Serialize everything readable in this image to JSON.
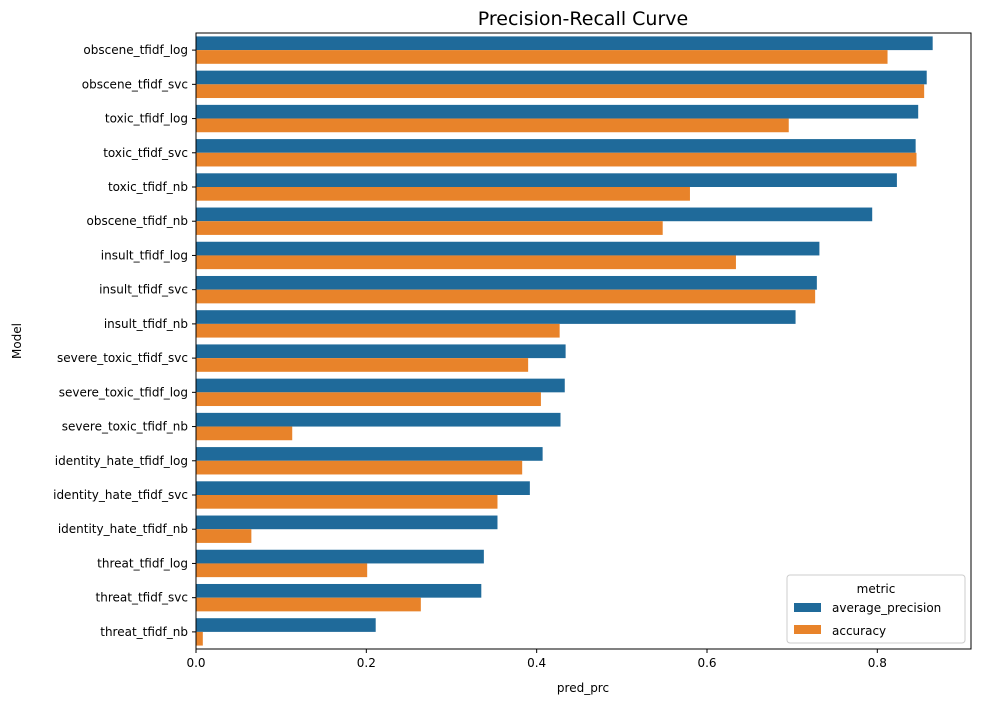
{
  "chart_data": {
    "type": "bar",
    "orientation": "horizontal",
    "title": "Precision-Recall Curve",
    "xlabel": "pred_prc",
    "ylabel": "Model",
    "xlim": [
      0,
      0.91
    ],
    "xticks": [
      0.0,
      0.2,
      0.4,
      0.6,
      0.8
    ],
    "xtick_labels": [
      "0.0",
      "0.2",
      "0.4",
      "0.6",
      "0.8"
    ],
    "grid": false,
    "legend": {
      "title": "metric",
      "position": "lower-right"
    },
    "categories": [
      "obscene_tfidf_log",
      "obscene_tfidf_svc",
      "toxic_tfidf_log",
      "toxic_tfidf_svc",
      "toxic_tfidf_nb",
      "obscene_tfidf_nb",
      "insult_tfidf_log",
      "insult_tfidf_svc",
      "insult_tfidf_nb",
      "severe_toxic_tfidf_svc",
      "severe_toxic_tfidf_log",
      "severe_toxic_tfidf_nb",
      "identity_hate_tfidf_log",
      "identity_hate_tfidf_svc",
      "identity_hate_tfidf_nb",
      "threat_tfidf_log",
      "threat_tfidf_svc",
      "threat_tfidf_nb"
    ],
    "series": [
      {
        "name": "average_precision",
        "color": "#1f6a9a",
        "values": [
          0.865,
          0.858,
          0.848,
          0.845,
          0.823,
          0.794,
          0.732,
          0.729,
          0.704,
          0.434,
          0.433,
          0.428,
          0.407,
          0.392,
          0.354,
          0.338,
          0.335,
          0.211
        ]
      },
      {
        "name": "accuracy",
        "color": "#e8832a",
        "values": [
          0.812,
          0.855,
          0.696,
          0.846,
          0.58,
          0.548,
          0.634,
          0.727,
          0.427,
          0.39,
          0.405,
          0.113,
          0.383,
          0.354,
          0.065,
          0.201,
          0.264,
          0.008
        ]
      }
    ]
  }
}
